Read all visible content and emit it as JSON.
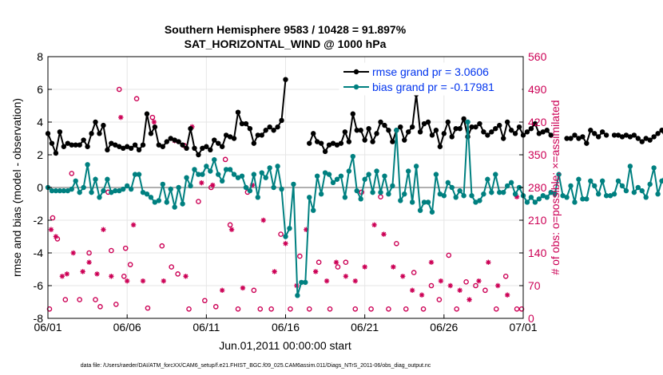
{
  "chart_data": {
    "type": "line",
    "title_line1": "Southern Hemisphere 9583 / 10428 = 91.897%",
    "title_line2": "SAT_HORIZONTAL_WIND @ 1000 hPa",
    "xlabel": "Jun.01,2011 00:00:00 start",
    "ylabel_left": "rmse and bias (model - observation)",
    "ylabel_right": "# of obs: o=possible; ×=assimilated",
    "ylim_left": [
      -8,
      8
    ],
    "ylim_right": [
      0,
      560
    ],
    "xlim": [
      0,
      30
    ],
    "left_ticks": [
      "-8",
      "-6",
      "-4",
      "-2",
      "0",
      "2",
      "4",
      "6",
      "8"
    ],
    "right_ticks": [
      "0",
      "70",
      "140",
      "210",
      "280",
      "350",
      "420",
      "490",
      "560"
    ],
    "x_tick_labels": [
      "06/01",
      "06/06",
      "06/11",
      "06/16",
      "06/21",
      "06/26",
      "07/01"
    ],
    "x_tick_values": [
      0,
      5,
      10,
      15,
      20,
      25,
      30
    ],
    "legend": {
      "rmse_label": "rmse grand pr = 3.0606",
      "bias_label": "bias grand pr = -0.17981"
    },
    "colors": {
      "rmse": "#000000",
      "bias": "#008080",
      "obs": "#cc0055",
      "zero_line": "#b0b0b0"
    },
    "step_days": 0.25,
    "rmse": [
      3.3,
      2.7,
      2.1,
      3.4,
      2.5,
      2.7,
      2.6,
      2.6,
      2.6,
      2.9,
      2.5,
      3.3,
      4.0,
      3.3,
      3.8,
      2.3,
      2.7,
      2.6,
      2.5,
      2.4,
      2.5,
      2.4,
      2.6,
      2.3,
      2.6,
      4.5,
      3.3,
      3.7,
      2.6,
      2.5,
      2.8,
      3.0,
      2.9,
      2.8,
      2.6,
      2.4,
      3.6,
      2.4,
      2.0,
      2.4,
      2.5,
      2.3,
      2.9,
      2.7,
      2.5,
      3.2,
      3.1,
      3.0,
      4.6,
      3.9,
      3.9,
      3.6,
      2.7,
      3.2,
      3.2,
      3.5,
      3.7,
      3.5,
      3.7,
      4.1,
      6.6,
      null,
      null,
      null,
      null,
      null,
      2.7,
      3.3,
      2.8,
      2.7,
      2.2,
      2.6,
      2.7,
      2.6,
      2.7,
      3.4,
      2.8,
      4.5,
      3.5,
      3.5,
      2.9,
      3.6,
      2.8,
      3.3,
      4.0,
      3.8,
      3.5,
      2.8,
      3.5,
      3.7,
      2.9,
      3.4,
      3.7,
      5.7,
      3.4,
      3.9,
      4.0,
      3.2,
      3.5,
      2.5,
      3.3,
      4.0,
      3.1,
      3.6,
      3.6,
      4.2,
      3.1,
      3.7,
      3.7,
      3.9,
      3.4,
      3.2,
      3.4,
      3.6,
      3.8,
      3.0,
      4.0,
      3.5,
      3.3,
      3.7,
      3.2,
      3.4,
      3.6,
      3.9,
      3.3,
      3.4,
      3.5,
      3.2,
      null,
      null,
      null,
      3.0,
      3.0,
      3.2,
      3.0,
      3.1,
      2.7,
      3.5,
      3.3,
      3.1,
      3.4,
      3.2,
      null,
      3.2,
      3.2,
      3.1,
      3.2,
      3.1,
      3.2,
      3.0,
      2.8,
      3.0,
      2.9,
      3.1,
      3.3,
      3.5,
      3.0,
      2.6
    ],
    "bias": [
      0.0,
      -0.2,
      -0.2,
      -0.2,
      -0.2,
      -0.2,
      -0.1,
      0.4,
      -0.3,
      0.0,
      1.4,
      -0.3,
      0.5,
      -0.6,
      -0.2,
      0.5,
      -0.3,
      -0.2,
      -0.2,
      -0.1,
      0.1,
      -0.1,
      0.8,
      0.8,
      -0.3,
      -0.4,
      -0.6,
      -0.9,
      -0.8,
      0.2,
      -0.9,
      -0.1,
      -1.2,
      0.0,
      -1.0,
      0.6,
      0.1,
      1.1,
      0.8,
      0.8,
      1.3,
      1.0,
      1.7,
      0.8,
      0.4,
      1.1,
      1.1,
      0.8,
      0.6,
      0.7,
      0.0,
      -0.2,
      0.8,
      -0.6,
      0.9,
      0.6,
      1.2,
      0.0,
      1.3,
      -0.1,
      -3.0,
      -2.5,
      0.2,
      -6.6,
      -5.8,
      -5.8,
      -0.6,
      -1.4,
      0.7,
      -0.4,
      0.9,
      0.8,
      0.3,
      0.5,
      0.7,
      -0.6,
      1.0,
      1.9,
      -0.2,
      -0.7,
      0.5,
      0.8,
      -0.3,
      1.0,
      -0.3,
      0.7,
      -0.4,
      0.1,
      3.5,
      -0.8,
      -0.4,
      1.0,
      -0.9,
      1.3,
      -1.4,
      -0.9,
      -0.9,
      -1.5,
      0.8,
      -0.4,
      -0.5,
      0.3,
      0.0,
      -0.6,
      -0.2,
      -0.5,
      4.0,
      -0.5,
      -0.9,
      -0.8,
      -0.4,
      0.5,
      -0.3,
      0.8,
      -0.3,
      -0.3,
      0.1,
      0.3,
      -0.4,
      0.0,
      -0.5,
      -0.9,
      -0.6,
      -0.9,
      -0.7,
      -0.5,
      -0.6,
      -0.3,
      -0.4,
      0.8,
      -0.5,
      -0.6,
      0.1,
      -0.9,
      0.5,
      -0.7,
      -0.7,
      0.4,
      0.1,
      -0.4,
      0.4,
      -0.5,
      -0.5,
      -0.4,
      0.4,
      0.1,
      -0.2,
      1.3,
      -0.3,
      0.0,
      -0.2,
      -0.6,
      0.2,
      1.2,
      -0.4,
      0.4,
      0.8,
      -0.3,
      0.2,
      0.6,
      0.1,
      0.0,
      -0.3
    ],
    "possible_markers": [
      [
        0.1,
        20
      ],
      [
        0.3,
        215
      ],
      [
        0.6,
        170
      ],
      [
        1.1,
        40
      ],
      [
        1.5,
        310
      ],
      [
        2.0,
        40
      ],
      [
        2.6,
        140
      ],
      [
        3.0,
        40
      ],
      [
        3.3,
        25
      ],
      [
        3.8,
        270
      ],
      [
        4.0,
        145
      ],
      [
        4.3,
        30
      ],
      [
        4.5,
        490
      ],
      [
        4.8,
        90
      ],
      [
        4.9,
        150
      ],
      [
        5.2,
        115
      ],
      [
        5.6,
        470
      ],
      [
        6.3,
        22
      ],
      [
        6.6,
        430
      ],
      [
        7.2,
        155
      ],
      [
        7.8,
        110
      ],
      [
        8.2,
        95
      ],
      [
        8.6,
        370
      ],
      [
        8.9,
        20
      ],
      [
        9.5,
        250
      ],
      [
        9.9,
        38
      ],
      [
        10.3,
        280
      ],
      [
        10.6,
        25
      ],
      [
        11.2,
        340
      ],
      [
        11.5,
        200
      ],
      [
        12.0,
        20
      ],
      [
        12.6,
        270
      ],
      [
        13.0,
        60
      ],
      [
        13.4,
        20
      ],
      [
        14.1,
        20
      ],
      [
        14.7,
        180
      ],
      [
        15.3,
        20
      ],
      [
        15.9,
        133
      ],
      [
        16.5,
        20
      ],
      [
        17.1,
        120
      ],
      [
        17.8,
        20
      ],
      [
        18.3,
        110
      ],
      [
        18.8,
        120
      ],
      [
        19.4,
        20
      ],
      [
        19.8,
        270
      ],
      [
        20.4,
        20
      ],
      [
        21.0,
        260
      ],
      [
        21.5,
        20
      ],
      [
        22.0,
        160
      ],
      [
        22.6,
        20
      ],
      [
        23.1,
        98
      ],
      [
        23.7,
        20
      ],
      [
        24.2,
        70
      ],
      [
        24.7,
        40
      ],
      [
        25.3,
        135
      ],
      [
        25.8,
        20
      ],
      [
        26.4,
        78
      ],
      [
        27.0,
        70
      ],
      [
        27.6,
        60
      ],
      [
        28.3,
        20
      ],
      [
        28.9,
        90
      ],
      [
        29.6,
        20
      ],
      [
        29.9,
        20
      ]
    ],
    "assimilated_markers": [
      [
        0.2,
        190
      ],
      [
        0.5,
        175
      ],
      [
        0.9,
        90
      ],
      [
        1.2,
        95
      ],
      [
        1.6,
        140
      ],
      [
        2.2,
        100
      ],
      [
        2.6,
        120
      ],
      [
        3.1,
        95
      ],
      [
        3.5,
        190
      ],
      [
        4.0,
        90
      ],
      [
        4.6,
        430
      ],
      [
        5.0,
        80
      ],
      [
        5.4,
        200
      ],
      [
        6.0,
        80
      ],
      [
        6.7,
        420
      ],
      [
        7.3,
        80
      ],
      [
        8.0,
        380
      ],
      [
        8.7,
        90
      ],
      [
        9.1,
        410
      ],
      [
        9.7,
        290
      ],
      [
        10.4,
        285
      ],
      [
        11.0,
        60
      ],
      [
        11.6,
        190
      ],
      [
        12.3,
        65
      ],
      [
        12.9,
        285
      ],
      [
        13.6,
        210
      ],
      [
        14.3,
        100
      ],
      [
        15.0,
        160
      ],
      [
        15.7,
        70
      ],
      [
        16.3,
        190
      ],
      [
        16.9,
        100
      ],
      [
        17.6,
        80
      ],
      [
        18.2,
        120
      ],
      [
        18.8,
        90
      ],
      [
        19.4,
        80
      ],
      [
        20.0,
        110
      ],
      [
        20.6,
        200
      ],
      [
        21.2,
        180
      ],
      [
        21.8,
        110
      ],
      [
        22.4,
        90
      ],
      [
        23.0,
        60
      ],
      [
        23.6,
        50
      ],
      [
        24.2,
        120
      ],
      [
        24.8,
        80
      ],
      [
        25.4,
        70
      ],
      [
        26.0,
        60
      ],
      [
        26.6,
        40
      ],
      [
        27.2,
        80
      ],
      [
        27.8,
        120
      ],
      [
        28.4,
        70
      ],
      [
        29.0,
        50
      ],
      [
        29.6,
        260
      ]
    ],
    "footer": "data file: /Users/raeder/DAI/ATM_forcXX/CAM6_setup/f.e21.FHIST_BGC.f09_025.CAM6assim.011/Diags_NTrS_2011-06/obs_diag_output.nc"
  }
}
